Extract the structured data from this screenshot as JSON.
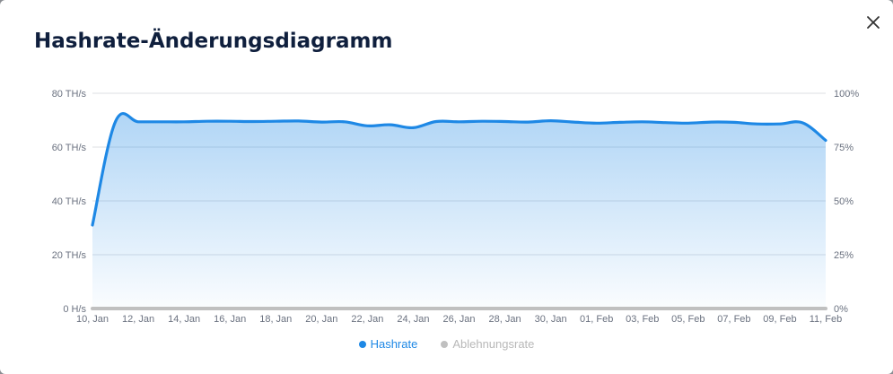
{
  "modal": {
    "title": "Hashrate-Änderungsdiagramm"
  },
  "colors": {
    "hashrate": "#1e88e5",
    "rejection": "#c0c0c0",
    "grid": "#dcdfe3"
  },
  "chart_data": {
    "type": "area",
    "title": "",
    "xlabel": "",
    "ylabel": "",
    "y_left_unit": "TH/s",
    "y_left_ticks": [
      "0 H/s",
      "20 TH/s",
      "40 TH/s",
      "60 TH/s",
      "80 TH/s"
    ],
    "y_left_range": [
      0,
      80
    ],
    "y_right_ticks": [
      "0%",
      "25%",
      "50%",
      "75%",
      "100%"
    ],
    "y_right_range": [
      0,
      100
    ],
    "x_tick_labels": [
      "10, Jan",
      "12, Jan",
      "14, Jan",
      "16, Jan",
      "18, Jan",
      "20, Jan",
      "22, Jan",
      "24, Jan",
      "26, Jan",
      "28, Jan",
      "30, Jan",
      "01, Feb",
      "03, Feb",
      "05, Feb",
      "07, Feb",
      "09, Feb",
      "11, Feb"
    ],
    "x": [
      "10, Jan",
      "11, Jan",
      "12, Jan",
      "13, Jan",
      "14, Jan",
      "15, Jan",
      "16, Jan",
      "17, Jan",
      "18, Jan",
      "19, Jan",
      "20, Jan",
      "21, Jan",
      "22, Jan",
      "23, Jan",
      "24, Jan",
      "25, Jan",
      "26, Jan",
      "27, Jan",
      "28, Jan",
      "29, Jan",
      "30, Jan",
      "31, Jan",
      "01, Feb",
      "02, Feb",
      "03, Feb",
      "04, Feb",
      "05, Feb",
      "06, Feb",
      "07, Feb",
      "08, Feb",
      "09, Feb",
      "10, Feb",
      "11, Feb"
    ],
    "grid": true,
    "legend_position": "bottom-center",
    "series": [
      {
        "name": "Hashrate",
        "axis": "left",
        "values": [
          31,
          69.4,
          69.4,
          69.4,
          69.4,
          69.6,
          69.6,
          69.5,
          69.6,
          69.7,
          69.3,
          69.4,
          67.9,
          68.3,
          67.2,
          69.5,
          69.4,
          69.6,
          69.5,
          69.3,
          69.8,
          69.3,
          68.9,
          69.2,
          69.4,
          69.1,
          68.9,
          69.3,
          69.2,
          68.6,
          68.6,
          69.0,
          62.5
        ]
      },
      {
        "name": "Ablehnungsrate",
        "axis": "right",
        "values": [
          0,
          0,
          0,
          0,
          0,
          0,
          0,
          0,
          0,
          0,
          0,
          0,
          0,
          0,
          0,
          0,
          0,
          0,
          0,
          0,
          0,
          0,
          0,
          0,
          0,
          0,
          0,
          0,
          0,
          0,
          0,
          0,
          0
        ]
      }
    ]
  }
}
